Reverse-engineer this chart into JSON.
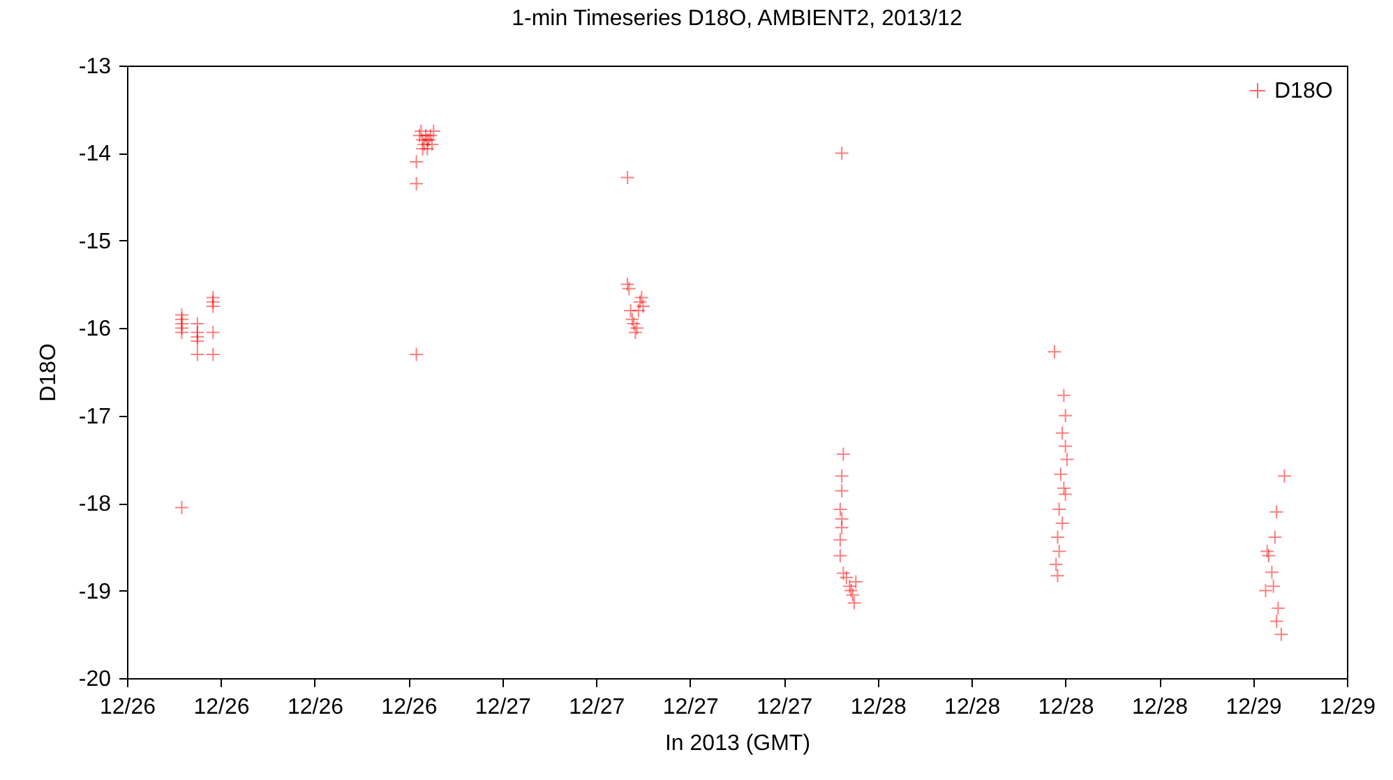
{
  "chart_data": {
    "type": "scatter",
    "title": "1-min Timeseries D18O, AMBIENT2, 2013/12",
    "xlabel": "In 2013 (GMT)",
    "ylabel": "D18O",
    "xlim": [
      "2013-12-26T00:00",
      "2013-12-29T06:00"
    ],
    "ylim": [
      -20,
      -13
    ],
    "xticks": [
      {
        "value": "2013-12-26T00:00",
        "label": "12/26"
      },
      {
        "value": "2013-12-26T06:00",
        "label": "12/26"
      },
      {
        "value": "2013-12-26T12:00",
        "label": "12/26"
      },
      {
        "value": "2013-12-26T18:00",
        "label": "12/26"
      },
      {
        "value": "2013-12-27T00:00",
        "label": "12/27"
      },
      {
        "value": "2013-12-27T06:00",
        "label": "12/27"
      },
      {
        "value": "2013-12-27T12:00",
        "label": "12/27"
      },
      {
        "value": "2013-12-27T18:00",
        "label": "12/27"
      },
      {
        "value": "2013-12-28T00:00",
        "label": "12/28"
      },
      {
        "value": "2013-12-28T06:00",
        "label": "12/28"
      },
      {
        "value": "2013-12-28T12:00",
        "label": "12/28"
      },
      {
        "value": "2013-12-28T18:00",
        "label": "12/28"
      },
      {
        "value": "2013-12-29T00:00",
        "label": "12/29"
      },
      {
        "value": "2013-12-29T06:00",
        "label": "12/29"
      }
    ],
    "yticks": [
      -20,
      -19,
      -18,
      -17,
      -16,
      -15,
      -14,
      -13
    ],
    "grid": false,
    "legend": "top right",
    "marker": "cross",
    "series": [
      {
        "name": "D18O",
        "color": "#ff0000",
        "x": [
          "2013-12-26T03:30",
          "2013-12-26T03:30",
          "2013-12-26T03:30",
          "2013-12-26T03:30",
          "2013-12-26T03:30",
          "2013-12-26T03:30",
          "2013-12-26T04:30",
          "2013-12-26T04:30",
          "2013-12-26T04:30",
          "2013-12-26T04:30",
          "2013-12-26T04:30",
          "2013-12-26T05:30",
          "2013-12-26T05:30",
          "2013-12-26T05:30",
          "2013-12-26T05:30",
          "2013-12-26T05:30",
          "2013-12-26T18:30",
          "2013-12-26T18:30",
          "2013-12-26T18:30",
          "2013-12-26T18:42",
          "2013-12-26T18:48",
          "2013-12-26T18:54",
          "2013-12-26T19:00",
          "2013-12-26T19:06",
          "2013-12-26T19:12",
          "2013-12-26T19:18",
          "2013-12-26T19:24",
          "2013-12-26T19:30",
          "2013-12-26T19:36",
          "2013-12-26T18:54",
          "2013-12-26T19:12",
          "2013-12-27T08:00",
          "2013-12-27T08:00",
          "2013-12-27T08:06",
          "2013-12-27T08:12",
          "2013-12-27T08:18",
          "2013-12-27T08:24",
          "2013-12-27T08:30",
          "2013-12-27T08:36",
          "2013-12-27T08:42",
          "2013-12-27T08:48",
          "2013-12-27T08:54",
          "2013-12-27T09:00",
          "2013-12-27T21:42",
          "2013-12-27T21:48",
          "2013-12-27T21:42",
          "2013-12-27T21:42",
          "2013-12-27T21:36",
          "2013-12-27T21:42",
          "2013-12-27T21:42",
          "2013-12-27T21:36",
          "2013-12-27T21:36",
          "2013-12-27T21:48",
          "2013-12-27T22:00",
          "2013-12-27T22:12",
          "2013-12-27T22:18",
          "2013-12-27T22:24",
          "2013-12-27T22:30",
          "2013-12-27T22:36",
          "2013-12-28T11:18",
          "2013-12-28T11:54",
          "2013-12-28T12:00",
          "2013-12-28T11:48",
          "2013-12-28T12:00",
          "2013-12-28T12:06",
          "2013-12-28T11:42",
          "2013-12-28T11:54",
          "2013-12-28T12:00",
          "2013-12-28T11:36",
          "2013-12-28T11:48",
          "2013-12-28T11:30",
          "2013-12-28T11:36",
          "2013-12-28T11:24",
          "2013-12-28T11:30",
          "2013-12-29T02:00",
          "2013-12-29T01:30",
          "2013-12-29T01:24",
          "2013-12-29T00:54",
          "2013-12-29T01:00",
          "2013-12-29T01:12",
          "2013-12-29T01:18",
          "2013-12-29T00:48",
          "2013-12-29T01:36",
          "2013-12-29T01:30",
          "2013-12-29T01:48"
        ],
        "values": [
          -15.85,
          -15.9,
          -15.95,
          -16.0,
          -16.05,
          -18.05,
          -15.95,
          -16.05,
          -16.1,
          -16.15,
          -16.3,
          -15.65,
          -15.7,
          -15.75,
          -16.05,
          -16.3,
          -14.1,
          -14.35,
          -16.3,
          -13.8,
          -13.75,
          -13.85,
          -13.9,
          -13.8,
          -13.95,
          -13.85,
          -13.8,
          -13.9,
          -13.75,
          -13.95,
          -13.85,
          -14.28,
          -15.5,
          -15.55,
          -15.8,
          -15.9,
          -15.95,
          -16.05,
          -16.0,
          -15.8,
          -15.7,
          -15.65,
          -15.75,
          -14.0,
          -17.44,
          -17.69,
          -17.86,
          -18.07,
          -18.18,
          -18.28,
          -18.42,
          -18.6,
          -18.8,
          -18.85,
          -18.95,
          -19.0,
          -19.05,
          -19.14,
          -18.9,
          -16.27,
          -16.77,
          -17.0,
          -17.2,
          -17.35,
          -17.5,
          -17.67,
          -17.83,
          -17.9,
          -18.07,
          -18.23,
          -18.39,
          -18.55,
          -18.7,
          -18.83,
          -17.69,
          -18.1,
          -18.39,
          -18.55,
          -18.6,
          -18.79,
          -18.95,
          -19.0,
          -19.2,
          -19.35,
          -19.5
        ]
      }
    ]
  }
}
